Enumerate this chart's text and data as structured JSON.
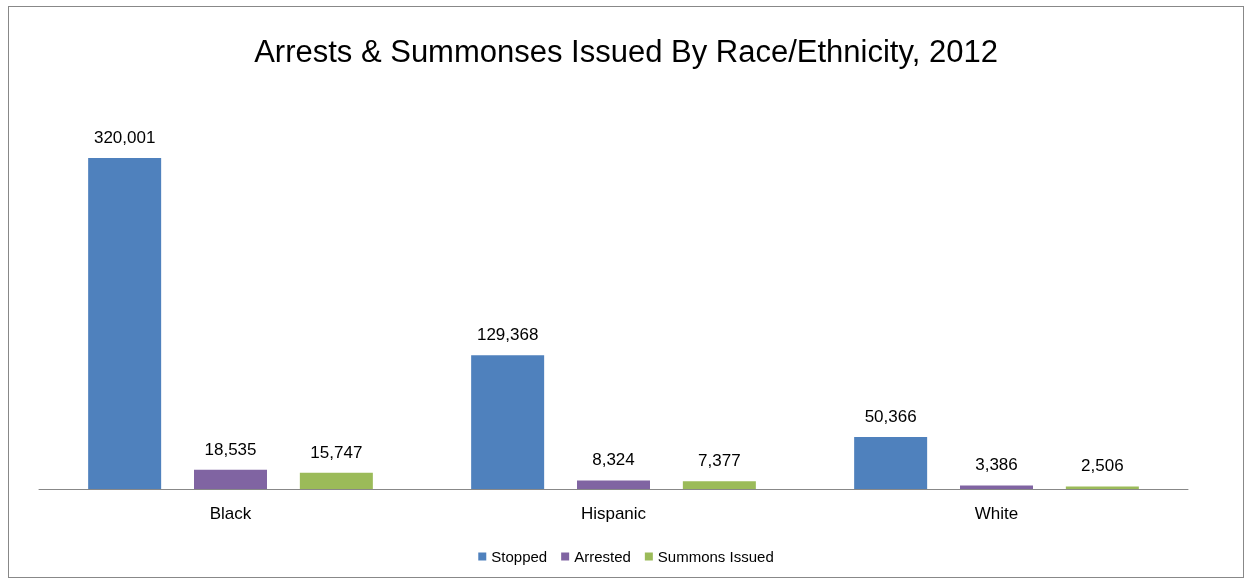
{
  "chart_data": {
    "type": "bar",
    "title": "Arrests & Summonses Issued By Race/Ethnicity, 2012",
    "categories": [
      "Black",
      "Hispanic",
      "White"
    ],
    "series": [
      {
        "name": "Stopped",
        "color": "#4f81bd",
        "values": [
          320001,
          129368,
          50366
        ],
        "value_labels": [
          "320,001",
          "129,368",
          "50,366"
        ]
      },
      {
        "name": "Arrested",
        "color": "#8064a2",
        "values": [
          18535,
          8324,
          3386
        ],
        "value_labels": [
          "18,535",
          "8,324",
          "3,386"
        ]
      },
      {
        "name": "Summons Issued",
        "color": "#9bbb59",
        "values": [
          15747,
          7377,
          2506
        ],
        "value_labels": [
          "15,747",
          "7,377",
          "2,506"
        ]
      }
    ],
    "legend": "bottom"
  }
}
